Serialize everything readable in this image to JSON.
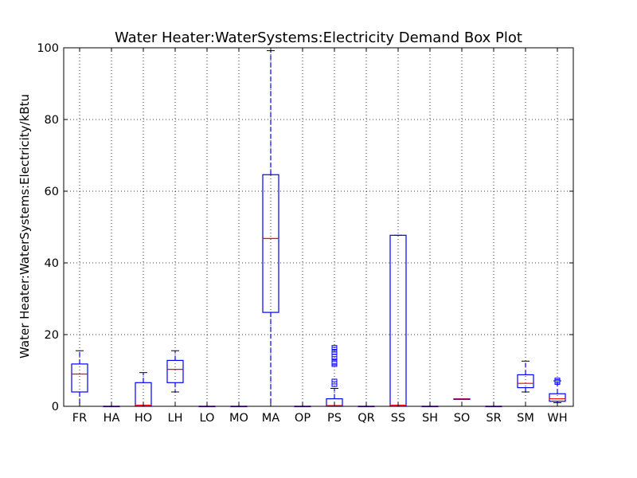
{
  "chart_data": {
    "type": "box",
    "title": "Water Heater:WaterSystems:Electricity Demand Box Plot",
    "xlabel": "",
    "ylabel": "Water Heater:WaterSystems:Electricity/kBtu",
    "ylim": [
      0,
      100
    ],
    "yticks": [
      0,
      20,
      40,
      60,
      80,
      100
    ],
    "grid": true,
    "categories": [
      "FR",
      "HA",
      "HO",
      "LH",
      "LO",
      "MO",
      "MA",
      "OP",
      "PS",
      "QR",
      "SS",
      "SH",
      "SO",
      "SR",
      "SM",
      "WH"
    ],
    "boxes": [
      {
        "category": "FR",
        "whisker_low": 0,
        "q1": 4,
        "median": 9,
        "q3": 11.8,
        "whisker_high": 15.5,
        "fliers": []
      },
      {
        "category": "HA",
        "whisker_low": 0,
        "q1": 0,
        "median": 0,
        "q3": 0,
        "whisker_high": 0,
        "fliers": []
      },
      {
        "category": "HO",
        "whisker_low": 0,
        "q1": 0,
        "median": 0.3,
        "q3": 6.6,
        "whisker_high": 9.4,
        "fliers": []
      },
      {
        "category": "LH",
        "whisker_low": 4,
        "q1": 6.6,
        "median": 10.3,
        "q3": 12.8,
        "whisker_high": 15.5,
        "fliers": []
      },
      {
        "category": "LO",
        "whisker_low": 0,
        "q1": 0,
        "median": 0,
        "q3": 0,
        "whisker_high": 0,
        "fliers": []
      },
      {
        "category": "MO",
        "whisker_low": 0,
        "q1": 0,
        "median": 0,
        "q3": 0,
        "whisker_high": 0,
        "fliers": []
      },
      {
        "category": "MA",
        "whisker_low": 0,
        "q1": 26.2,
        "median": 46.8,
        "q3": 64.6,
        "whisker_high": 99.2,
        "fliers": []
      },
      {
        "category": "OP",
        "whisker_low": 0,
        "q1": 0,
        "median": 0,
        "q3": 0,
        "whisker_high": 0,
        "fliers": []
      },
      {
        "category": "PS",
        "whisker_low": 0,
        "q1": 0,
        "median": 0.2,
        "q3": 2.1,
        "whisker_high": 5,
        "fliers": [
          6.2,
          6.9,
          11.8,
          12.2,
          12.5,
          13.8,
          14.5,
          15.2,
          15.8,
          16.3
        ]
      },
      {
        "category": "QR",
        "whisker_low": 0,
        "q1": 0,
        "median": 0,
        "q3": 0,
        "whisker_high": 0,
        "fliers": []
      },
      {
        "category": "SS",
        "whisker_low": 0,
        "q1": 0,
        "median": 0.3,
        "q3": 47.7,
        "whisker_high": 47.7,
        "fliers": []
      },
      {
        "category": "SH",
        "whisker_low": 0,
        "q1": 0,
        "median": 0,
        "q3": 0,
        "whisker_high": 0,
        "fliers": []
      },
      {
        "category": "SO",
        "whisker_low": 1.9,
        "q1": 1.9,
        "median": 2.0,
        "q3": 2.1,
        "whisker_high": 2.1,
        "fliers": []
      },
      {
        "category": "SR",
        "whisker_low": 0,
        "q1": 0,
        "median": 0,
        "q3": 0,
        "whisker_high": 0,
        "fliers": []
      },
      {
        "category": "SM",
        "whisker_low": 4,
        "q1": 5.2,
        "median": 6.4,
        "q3": 8.8,
        "whisker_high": 12.6,
        "fliers": []
      },
      {
        "category": "WH",
        "whisker_low": 1,
        "q1": 1.4,
        "median": 2.1,
        "q3": 3.5,
        "whisker_high": 7.1,
        "fliers": [
          6.8,
          7.2
        ]
      }
    ],
    "colors": {
      "box": "#0000ff",
      "median": "#ff0000",
      "whisker_cap": "#000000",
      "grid": "#000000"
    }
  }
}
